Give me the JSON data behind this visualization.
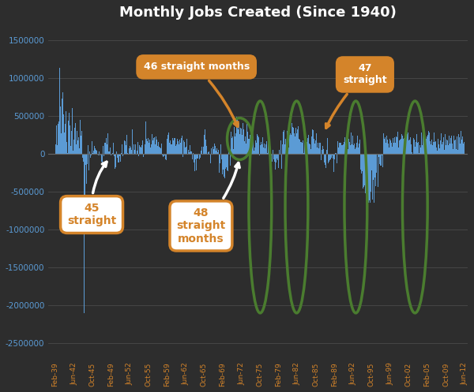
{
  "title": "Monthly Jobs Created (Since 1940)",
  "bg_color": "#2d2d2d",
  "bar_color": "#5b9bd5",
  "title_color": "#ffffff",
  "tick_label_color_y": "#5b9bd5",
  "tick_label_color_x": "#d4842a",
  "ylim": [
    -2700000,
    1700000
  ],
  "yticks": [
    -2500000,
    -2000000,
    -1500000,
    -1000000,
    -500000,
    0,
    500000,
    1000000,
    1500000
  ],
  "x_tick_labels": [
    "Feb-39",
    "Jun-42",
    "Oct-45",
    "Feb-49",
    "Jun-52",
    "Oct-55",
    "Feb-59",
    "Jun-62",
    "Oct-65",
    "Feb-69",
    "Jun-72",
    "Oct-75",
    "Feb-79",
    "Jun-82",
    "Oct-85",
    "Feb-89",
    "Jun-92",
    "Oct-95",
    "Jun-99",
    "Oct-02",
    "Feb-05",
    "Oct-09",
    "Jun-12"
  ],
  "n_months": 900,
  "annotation_46_text": "46 straight months",
  "annotation_47_text": "47\nstraight",
  "annotation_45_text": "45\nstraight",
  "annotation_48_text": "48\nstraight\nmonths",
  "green_oval_color": "#4a7c2f",
  "orange_color": "#d4842a"
}
